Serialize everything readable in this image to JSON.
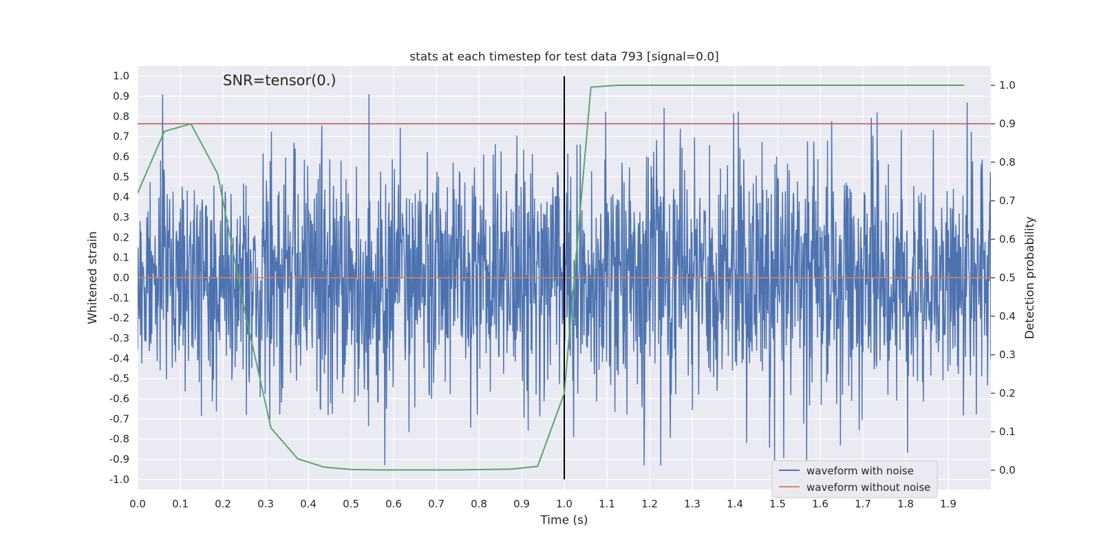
{
  "chart_data": {
    "type": "line",
    "title": "stats at each timestep for test data 793 [signal=0.0]",
    "annotation": "SNR=tensor(0.)",
    "xlabel": "Time (s)",
    "ylabel_left": "Whitened strain",
    "ylabel_right": "Detection probability",
    "xlim": [
      0.0,
      2.0
    ],
    "ylim_left": [
      -1.05,
      1.05
    ],
    "ylim_right": [
      -0.05,
      1.05
    ],
    "x_ticks": [
      "0.0",
      "0.1",
      "0.2",
      "0.3",
      "0.4",
      "0.5",
      "0.6",
      "0.7",
      "0.8",
      "0.9",
      "1.0",
      "1.1",
      "1.2",
      "1.3",
      "1.4",
      "1.5",
      "1.6",
      "1.7",
      "1.8",
      "1.9"
    ],
    "y_ticks_left": [
      "1.0",
      "0.9",
      "0.8",
      "0.7",
      "0.6",
      "0.5",
      "0.4",
      "0.3",
      "0.2",
      "0.1",
      "0.0",
      "-0.1",
      "-0.2",
      "-0.3",
      "-0.4",
      "-0.5",
      "-0.6",
      "-0.7",
      "-0.8",
      "-0.9",
      "-1.0"
    ],
    "y_ticks_right": [
      "1.0",
      "0.9",
      "0.8",
      "0.7",
      "0.6",
      "0.5",
      "0.4",
      "0.3",
      "0.2",
      "0.1",
      "0.0"
    ],
    "series": [
      {
        "name": "waveform with noise",
        "axis": "left",
        "color": "#4c72b0",
        "kind": "noise",
        "n_samples": 2048,
        "x_range": [
          0.0,
          2.0
        ],
        "amplitude_range": [
          -0.93,
          1.0
        ]
      },
      {
        "name": "waveform without noise",
        "axis": "left",
        "color": "#dd8452",
        "x": [
          0.0,
          2.0
        ],
        "y": [
          0.0,
          0.0
        ]
      },
      {
        "name": "detection probability",
        "axis": "right",
        "color": "#55a868",
        "x": [
          0.0,
          0.0625,
          0.125,
          0.1875,
          0.25,
          0.3125,
          0.375,
          0.4375,
          0.5,
          0.5625,
          0.625,
          0.6875,
          0.75,
          0.8125,
          0.875,
          0.9375,
          1.0,
          1.0625,
          1.125,
          1.1875,
          1.25,
          1.3125,
          1.375,
          1.4375,
          1.5,
          1.5625,
          1.625,
          1.6875,
          1.75,
          1.8125,
          1.875,
          1.9375
        ],
        "y": [
          0.72,
          0.88,
          0.9,
          0.77,
          0.42,
          0.11,
          0.03,
          0.008,
          0.002,
          0.001,
          0.001,
          0.001,
          0.001,
          0.002,
          0.003,
          0.01,
          0.2,
          0.995,
          1.0,
          1.0,
          1.0,
          1.0,
          1.0,
          1.0,
          1.0,
          1.0,
          1.0,
          1.0,
          1.0,
          1.0,
          1.0,
          1.0
        ]
      }
    ],
    "reference_lines": [
      {
        "name": "threshold",
        "axis": "right",
        "orientation": "horizontal",
        "value": 0.9,
        "color": "#c44e52"
      },
      {
        "name": "signal-time",
        "axis": "left",
        "orientation": "vertical",
        "value": 1.0,
        "range": [
          -1.0,
          1.0
        ],
        "color": "#000000"
      }
    ],
    "legend": {
      "position": "lower-right",
      "entries": [
        "waveform with noise",
        "waveform without noise"
      ]
    },
    "grid": true
  }
}
